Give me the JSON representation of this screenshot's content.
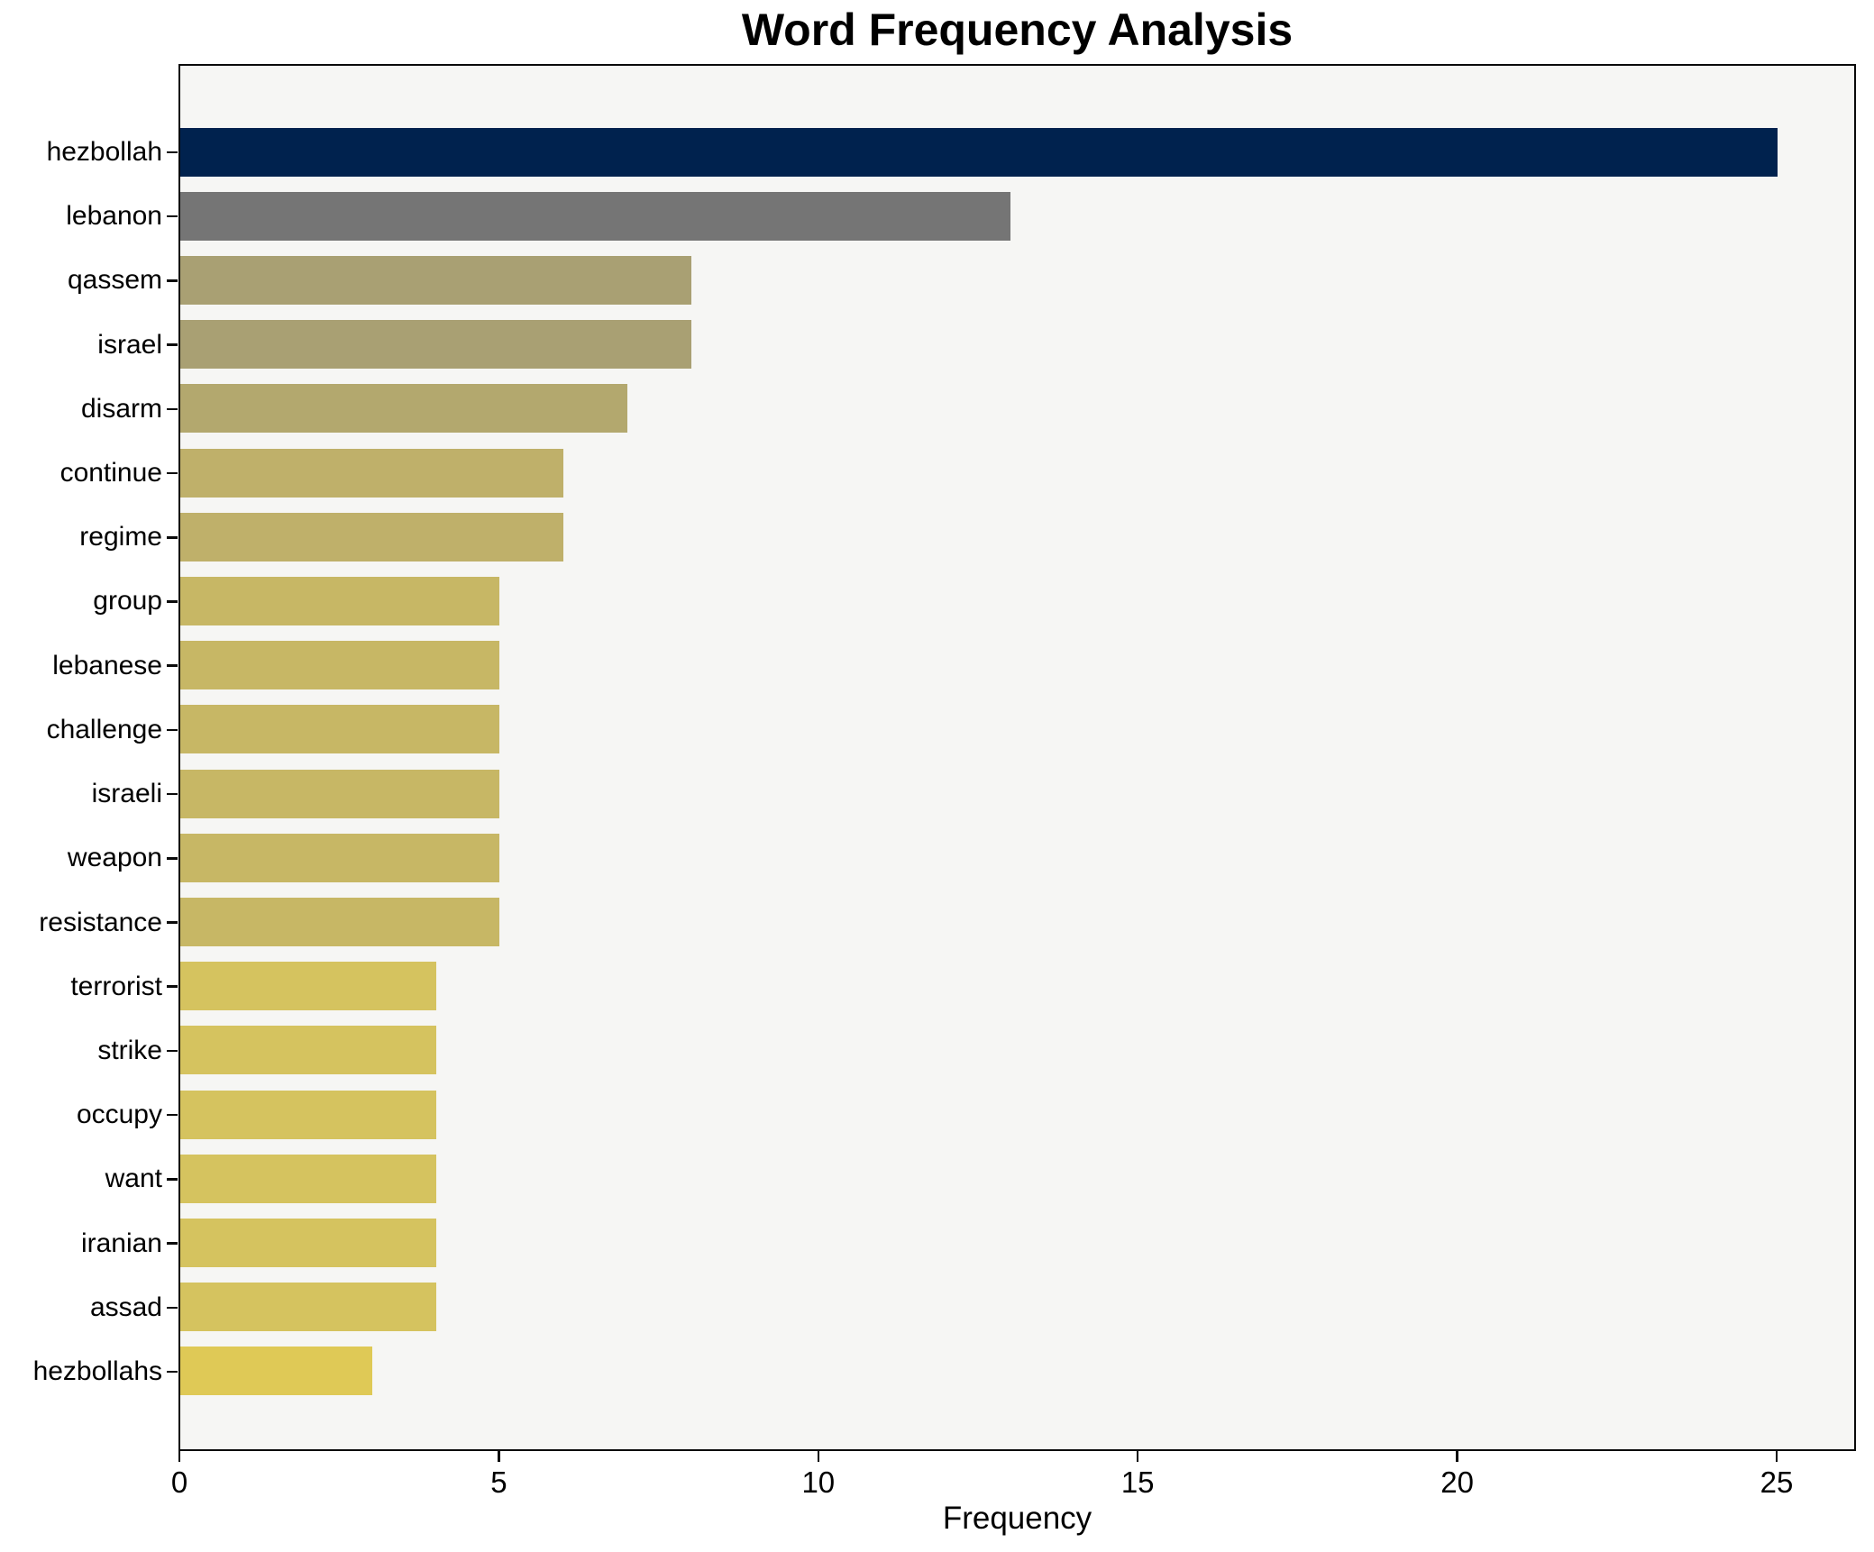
{
  "title": "Word Frequency Analysis",
  "chart_data": {
    "type": "bar",
    "orientation": "horizontal",
    "title": "Word Frequency Analysis",
    "xlabel": "Frequency",
    "ylabel": "",
    "categories": [
      "hezbollah",
      "lebanon",
      "qassem",
      "israel",
      "disarm",
      "continue",
      "regime",
      "group",
      "lebanese",
      "challenge",
      "israeli",
      "weapon",
      "resistance",
      "terrorist",
      "strike",
      "occupy",
      "want",
      "iranian",
      "assad",
      "hezbollahs"
    ],
    "values": [
      25,
      13,
      8,
      8,
      7,
      6,
      6,
      5,
      5,
      5,
      5,
      5,
      5,
      4,
      4,
      4,
      4,
      4,
      4,
      3
    ],
    "bar_colors": [
      "#00224e",
      "#757575",
      "#a9a073",
      "#a9a073",
      "#b3a86e",
      "#bfb06a",
      "#bfb06a",
      "#c7b765",
      "#c7b765",
      "#c7b765",
      "#c7b765",
      "#c7b765",
      "#c7b765",
      "#d5c35f",
      "#d5c35f",
      "#d5c35f",
      "#d5c35f",
      "#d5c35f",
      "#d5c35f",
      "#dfc956"
    ],
    "x_ticks": [
      0,
      5,
      10,
      15,
      20,
      25
    ],
    "xlim": [
      0,
      26.25
    ],
    "grid": false,
    "legend": null,
    "colors": {
      "plot_background": "#f6f6f4",
      "figure_background": "#ffffff",
      "axis": "#0a0a0a",
      "text": "#000000"
    }
  }
}
